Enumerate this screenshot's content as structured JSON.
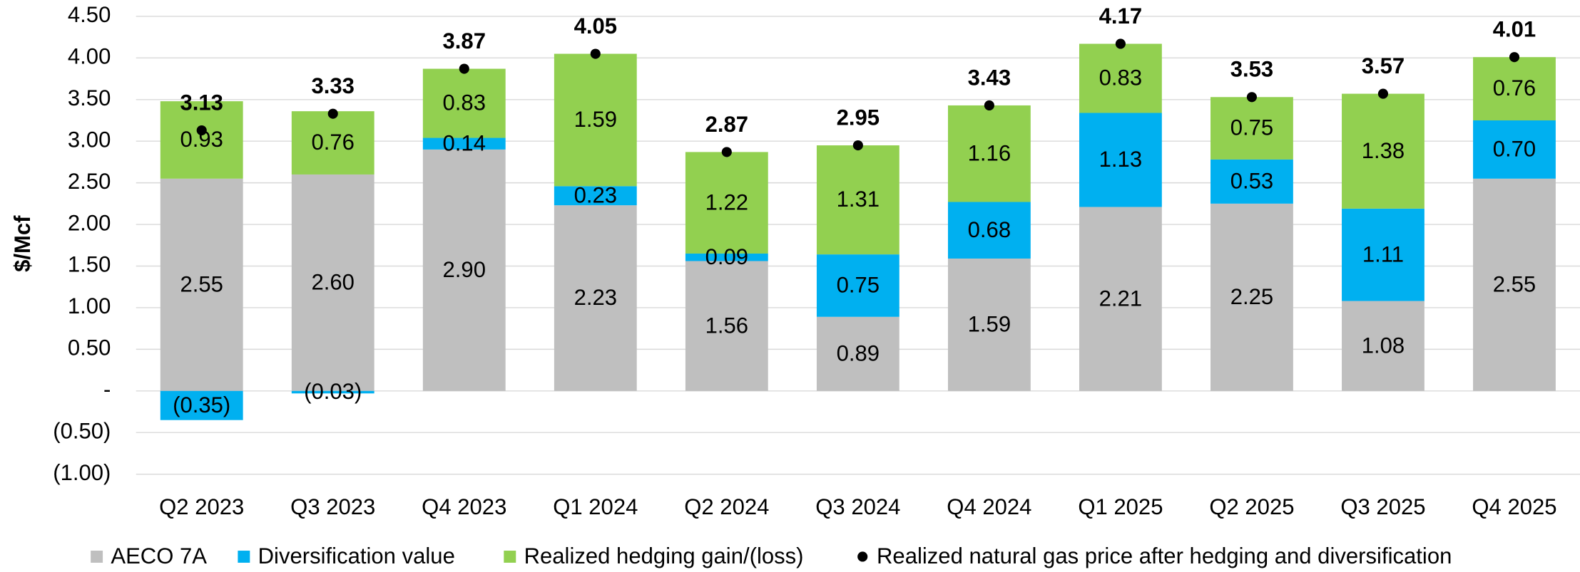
{
  "chart_data": {
    "type": "bar",
    "stacked": true,
    "y_label": "$/Mcf",
    "categories": [
      "Q2 2023",
      "Q3 2023",
      "Q4 2023",
      "Q1 2024",
      "Q2 2024",
      "Q3 2024",
      "Q4 2024",
      "Q1 2025",
      "Q2 2025",
      "Q3 2025",
      "Q4 2025"
    ],
    "series": [
      {
        "name": "AECO 7A",
        "color": "#bfbfbf",
        "values": [
          2.55,
          2.6,
          2.9,
          2.23,
          1.56,
          0.89,
          1.59,
          2.21,
          2.25,
          1.08,
          2.55
        ],
        "value_labels": [
          "2.55",
          "2.60",
          "2.90",
          "2.23",
          "1.56",
          "0.89",
          "1.59",
          "2.21",
          "2.25",
          "1.08",
          "2.55"
        ]
      },
      {
        "name": "Diversification value",
        "color": "#00b0f0",
        "values": [
          -0.35,
          -0.03,
          0.14,
          0.23,
          0.09,
          0.75,
          0.68,
          1.13,
          0.53,
          1.11,
          0.7
        ],
        "value_labels": [
          "(0.35)",
          "(0.03)",
          "0.14",
          "0.23",
          "0.09",
          "0.75",
          "0.68",
          "1.13",
          "0.53",
          "1.11",
          "0.70"
        ]
      },
      {
        "name": "Realized hedging gain/(loss)",
        "color": "#92d050",
        "values": [
          0.93,
          0.76,
          0.83,
          1.59,
          1.22,
          1.31,
          1.16,
          0.83,
          0.75,
          1.38,
          0.76
        ],
        "value_labels": [
          "0.93",
          "0.76",
          "0.83",
          "1.59",
          "1.22",
          "1.31",
          "1.16",
          "0.83",
          "0.75",
          "1.38",
          "0.76"
        ]
      },
      {
        "name": "Realized natural gas price after hedging and diversification",
        "color": "#000000",
        "type": "scatter",
        "values": [
          3.13,
          3.33,
          3.87,
          4.05,
          2.87,
          2.95,
          3.43,
          4.17,
          3.53,
          3.57,
          4.01
        ]
      }
    ],
    "ylim": [
      -1,
      4.5
    ],
    "yticks": [
      {
        "value": -1,
        "label": "(1.00)"
      },
      {
        "value": -0.5,
        "label": "(0.50)"
      },
      {
        "value": 0,
        "label": "-"
      },
      {
        "value": 0.5,
        "label": "0.50"
      },
      {
        "value": 1,
        "label": "1.00"
      },
      {
        "value": 1.5,
        "label": "1.50"
      },
      {
        "value": 2,
        "label": "2.00"
      },
      {
        "value": 2.5,
        "label": "2.50"
      },
      {
        "value": 3,
        "label": "3.00"
      },
      {
        "value": 3.5,
        "label": "3.50"
      },
      {
        "value": 4,
        "label": "4.00"
      },
      {
        "value": 4.5,
        "label": "4.50"
      }
    ],
    "grid": true,
    "legend": "bottom"
  }
}
